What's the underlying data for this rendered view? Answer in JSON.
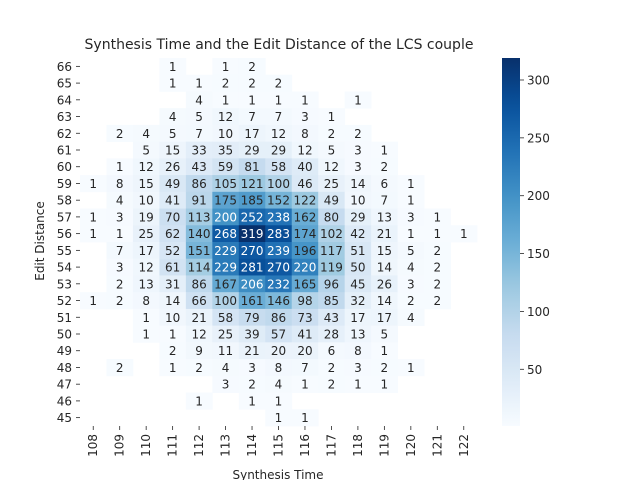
{
  "chart_data": {
    "type": "heatmap",
    "title": "Synthesis Time and the Edit Distance of the LCS couple",
    "xlabel": "Synthesis Time",
    "ylabel": "Edit Distance",
    "x_categories": [
      "108",
      "109",
      "110",
      "111",
      "112",
      "113",
      "114",
      "115",
      "116",
      "117",
      "118",
      "119",
      "120",
      "121",
      "122"
    ],
    "y_categories": [
      "66",
      "65",
      "64",
      "63",
      "62",
      "61",
      "60",
      "59",
      "58",
      "57",
      "56",
      "55",
      "54",
      "53",
      "52",
      "51",
      "50",
      "49",
      "48",
      "47",
      "46",
      "45"
    ],
    "values": [
      [
        null,
        null,
        null,
        1,
        null,
        1,
        2,
        null,
        null,
        null,
        null,
        null,
        null,
        null,
        null
      ],
      [
        null,
        null,
        null,
        1,
        1,
        2,
        2,
        2,
        null,
        null,
        null,
        null,
        null,
        null,
        null
      ],
      [
        null,
        null,
        null,
        null,
        4,
        1,
        1,
        1,
        1,
        null,
        1,
        null,
        null,
        null,
        null
      ],
      [
        null,
        null,
        null,
        4,
        5,
        12,
        7,
        7,
        3,
        1,
        null,
        null,
        null,
        null,
        null
      ],
      [
        null,
        2,
        4,
        5,
        7,
        10,
        17,
        12,
        8,
        2,
        2,
        null,
        null,
        null,
        null
      ],
      [
        null,
        null,
        5,
        15,
        33,
        35,
        29,
        29,
        12,
        5,
        3,
        1,
        null,
        null,
        null
      ],
      [
        null,
        1,
        12,
        26,
        43,
        59,
        81,
        58,
        40,
        12,
        3,
        2,
        null,
        null,
        null
      ],
      [
        1,
        8,
        15,
        49,
        86,
        105,
        121,
        100,
        46,
        25,
        14,
        6,
        1,
        null,
        null
      ],
      [
        null,
        4,
        10,
        41,
        91,
        175,
        185,
        152,
        122,
        49,
        10,
        7,
        1,
        null,
        null
      ],
      [
        1,
        3,
        19,
        70,
        113,
        200,
        252,
        238,
        162,
        80,
        29,
        13,
        3,
        1,
        null
      ],
      [
        1,
        1,
        25,
        62,
        140,
        268,
        319,
        283,
        174,
        102,
        42,
        21,
        1,
        1,
        1
      ],
      [
        null,
        7,
        17,
        52,
        151,
        229,
        270,
        239,
        196,
        117,
        51,
        15,
        5,
        2,
        null
      ],
      [
        null,
        3,
        12,
        61,
        114,
        229,
        281,
        270,
        220,
        119,
        50,
        14,
        4,
        2,
        null
      ],
      [
        null,
        2,
        13,
        31,
        86,
        167,
        206,
        232,
        165,
        96,
        45,
        26,
        3,
        2,
        null
      ],
      [
        1,
        2,
        8,
        14,
        66,
        100,
        161,
        146,
        98,
        85,
        32,
        14,
        2,
        2,
        null
      ],
      [
        null,
        null,
        1,
        10,
        21,
        58,
        79,
        86,
        73,
        43,
        17,
        17,
        4,
        null,
        null
      ],
      [
        null,
        null,
        1,
        1,
        12,
        25,
        39,
        57,
        41,
        28,
        13,
        5,
        null,
        null,
        null
      ],
      [
        null,
        null,
        null,
        2,
        9,
        11,
        21,
        20,
        20,
        6,
        8,
        1,
        null,
        null,
        null
      ],
      [
        null,
        2,
        null,
        1,
        2,
        4,
        3,
        8,
        7,
        2,
        3,
        2,
        1,
        null,
        null
      ],
      [
        null,
        null,
        null,
        null,
        null,
        3,
        2,
        4,
        1,
        2,
        1,
        1,
        null,
        null,
        null
      ],
      [
        null,
        null,
        null,
        null,
        1,
        null,
        1,
        1,
        null,
        null,
        null,
        null,
        null,
        null,
        null
      ],
      [
        null,
        null,
        null,
        null,
        null,
        null,
        null,
        1,
        1,
        null,
        null,
        null,
        null,
        null,
        null
      ]
    ],
    "colorbar": {
      "ticks": [
        50,
        100,
        150,
        200,
        250,
        300
      ],
      "min": 1,
      "max": 319,
      "colormap": "Blues"
    }
  }
}
